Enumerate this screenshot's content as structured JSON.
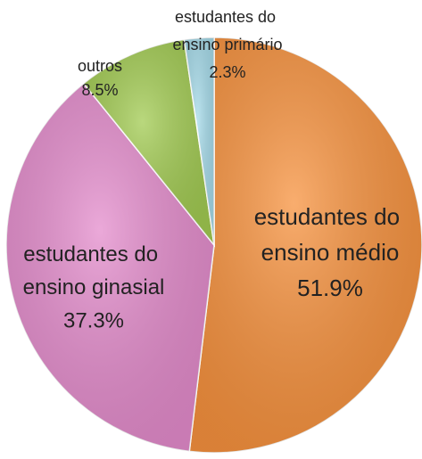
{
  "chart_data": {
    "type": "pie",
    "categories": [
      "estudantes do ensino médio",
      "estudantes do ensino ginasial",
      "outros",
      "estudantes do ensino primário"
    ],
    "values": [
      51.9,
      37.3,
      8.5,
      2.3
    ],
    "value_labels": [
      "51.9%",
      "37.3%",
      "8.5%",
      "2.3%"
    ],
    "colors": [
      "#f7923e",
      "#e48ccc",
      "#a2cb52",
      "#a6dbea"
    ]
  }
}
